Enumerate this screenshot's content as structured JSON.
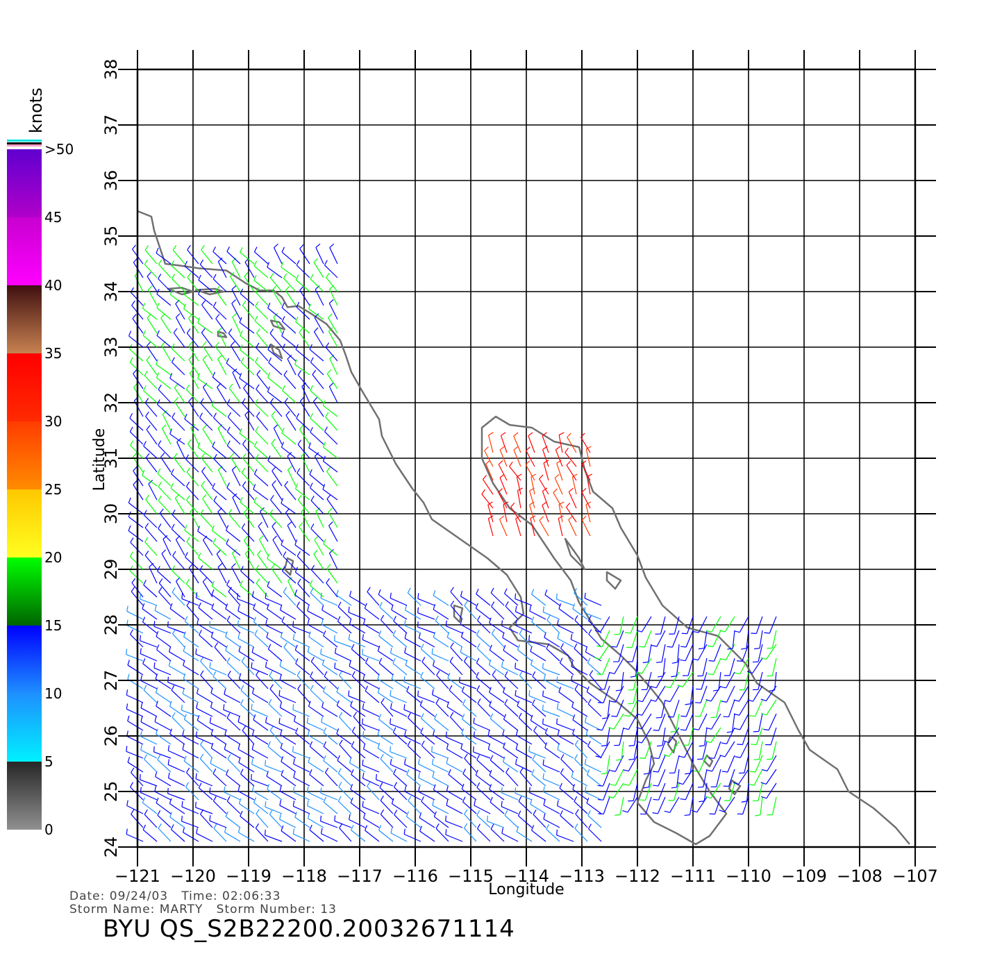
{
  "colorbar": {
    "units": "knots",
    "labels": [
      "0",
      "5",
      "10",
      "15",
      "20",
      "25",
      "30",
      "35",
      "40",
      "45",
      ">50"
    ],
    "bands": [
      {
        "from": 0,
        "to": 5,
        "colors": [
          "#909090",
          "#262626"
        ]
      },
      {
        "from": 5,
        "to": 10,
        "colors": [
          "#00f0ff",
          "#1e90ff"
        ]
      },
      {
        "from": 10,
        "to": 15,
        "colors": [
          "#1e90ff",
          "#0000ff"
        ]
      },
      {
        "from": 15,
        "to": 20,
        "colors": [
          "#006400",
          "#00ff00"
        ]
      },
      {
        "from": 20,
        "to": 25,
        "colors": [
          "#ffff20",
          "#ffc800"
        ]
      },
      {
        "from": 25,
        "to": 30,
        "colors": [
          "#ff8c00",
          "#ff3c00"
        ]
      },
      {
        "from": 30,
        "to": 35,
        "colors": [
          "#ff2a00",
          "#ff0000"
        ]
      },
      {
        "from": 35,
        "to": 40,
        "colors": [
          "#c88250",
          "#401010"
        ]
      },
      {
        "from": 40,
        "to": 45,
        "colors": [
          "#ff00ff",
          "#c800d0"
        ]
      },
      {
        "from": 45,
        "to": 50,
        "colors": [
          "#b000c8",
          "#6000d0"
        ]
      }
    ]
  },
  "map": {
    "lon_range": [
      -121,
      -107
    ],
    "lat_range": [
      24,
      38
    ],
    "lon_labels": [
      "-121",
      "-120",
      "-119",
      "-118",
      "-117",
      "-116",
      "-115",
      "-114",
      "-113",
      "-112",
      "-111",
      "-110",
      "-109",
      "-108",
      "-107"
    ],
    "lat_labels": [
      "24",
      "25",
      "26",
      "27",
      "28",
      "29",
      "30",
      "31",
      "32",
      "33",
      "34",
      "35",
      "36",
      "37",
      "38"
    ],
    "xlabel": "Longitude",
    "ylabel": "Latitude",
    "coastline_color": "#707070",
    "grid": true
  },
  "wind_regions": [
    {
      "name": "pacific-north",
      "lon": [
        -120.9,
        -117.2
      ],
      "lat": [
        28.5,
        34.7
      ],
      "speed": 15,
      "dir": 320
    },
    {
      "name": "pacific-south",
      "lon": [
        -120.9,
        -112.5
      ],
      "lat": [
        24.1,
        28.5
      ],
      "speed": 11,
      "dir": 305
    },
    {
      "name": "gulf-north",
      "lon": [
        -114.6,
        -112.8
      ],
      "lat": [
        29.6,
        31.3
      ],
      "speed": 31,
      "dir": 335
    },
    {
      "name": "gulf-south",
      "lon": [
        -112.5,
        -109.4
      ],
      "lat": [
        24.9,
        28.2
      ],
      "speed": 14,
      "dir": 200
    }
  ],
  "info": {
    "line1": "Date: 09/24/03   Time: 02:06:33",
    "line2": "Storm Name: MARTY   Storm Number: 13",
    "title": "BYU  QS_S2B22200.20032671114"
  }
}
